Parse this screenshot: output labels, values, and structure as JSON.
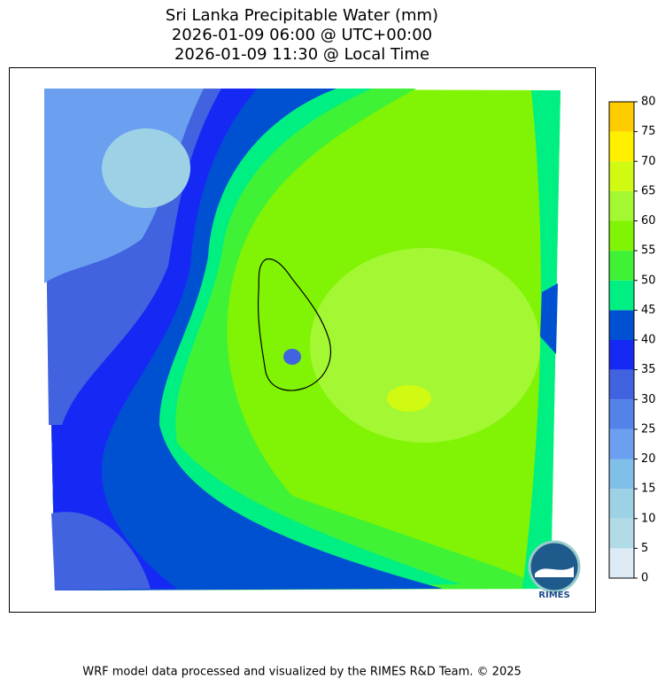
{
  "header": {
    "title": [
      "Sri Lanka Precipitable Water (mm)",
      "2026-01-09 06:00 @ UTC+00:00",
      "2026-01-09 11:30 @ Local Time"
    ]
  },
  "colorbar": {
    "lim": [
      0,
      80
    ],
    "ticks": [
      0,
      5,
      10,
      15,
      20,
      25,
      30,
      35,
      40,
      45,
      50,
      55,
      60,
      65,
      70,
      75,
      80
    ],
    "colors": [
      "#ddebf6",
      "#b3dbe7",
      "#9dd2e6",
      "#80bfe8",
      "#6b9ff0",
      "#5383e9",
      "#4163df",
      "#1628f4",
      "#0050d2",
      "#00ef83",
      "#3ff235",
      "#80f404",
      "#a3f733",
      "#d0fa12",
      "#fff000",
      "#ffcc00"
    ]
  },
  "logo": {
    "label": "RIMES"
  },
  "footer": {
    "text": "WRF model data processed and visualized by the RIMES R&D Team. © 2025"
  }
}
